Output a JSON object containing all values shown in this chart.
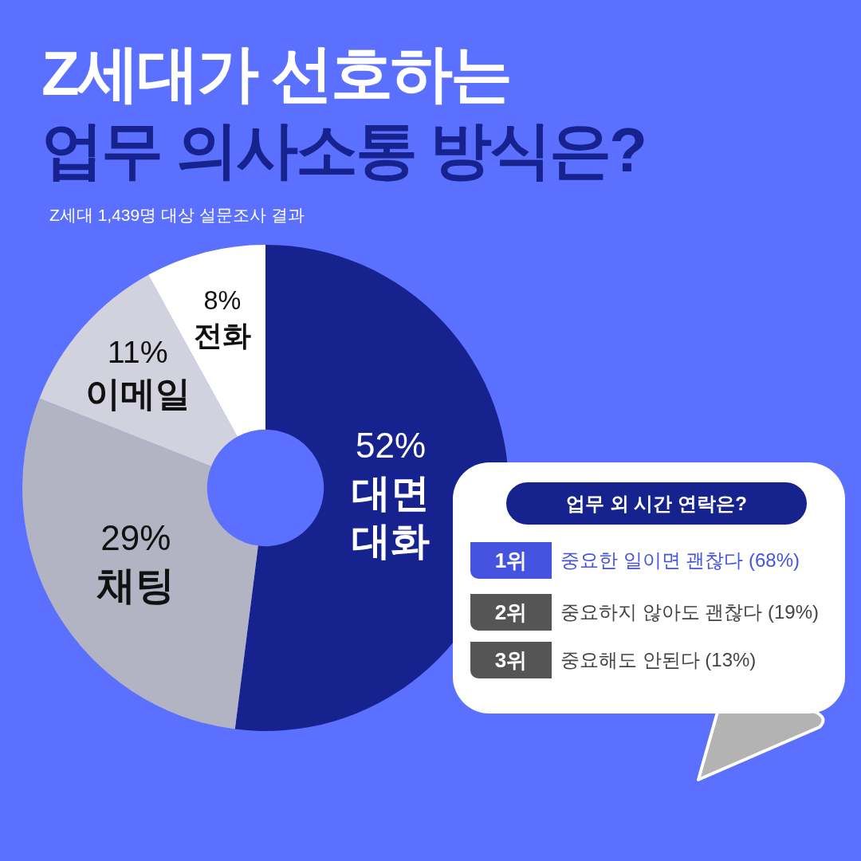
{
  "chart_data": [
    {
      "type": "donut",
      "title": "Z세대가 선호하는\n업무 의사소통 방식은?",
      "subtitle": "Z세대 1,439명 대상 설문조사 결과",
      "categories": [
        "대면 대화",
        "채팅",
        "이메일",
        "전화"
      ],
      "values": [
        52,
        29,
        11,
        8
      ],
      "colors": [
        "#16238f",
        "#b2b4c3",
        "#d2d2df",
        "#ffffff"
      ],
      "value_labels": [
        "52%",
        "29%",
        "11%",
        "8%"
      ],
      "legend": false
    },
    {
      "type": "other",
      "title": "업무 외 시간 연락은?",
      "annotations": [
        "1위",
        "중요한 일이면 괜찮다 (68%)",
        "2위",
        "중요하지 않아도 괜찮다 (19%)",
        "3위",
        "중요해도 안된다 (13%)"
      ]
    }
  ]
}
